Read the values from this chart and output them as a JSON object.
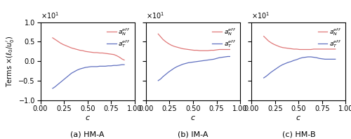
{
  "subplot_titles": [
    "(a) HM-A",
    "(b) IM-A",
    "(c) HM-B"
  ],
  "ylabel": "Terms $\\times (\\ell_0/u_0^{\\prime})$",
  "xlabel": "$c$",
  "xlim": [
    0.0,
    1.0
  ],
  "ylim": [
    -1.0,
    1.0
  ],
  "yticks": [
    -1.0,
    -0.5,
    0.0,
    0.5,
    1.0
  ],
  "xticks": [
    0.0,
    0.25,
    0.5,
    0.75,
    1.0
  ],
  "multiplier_label": "$\\times 10^1$",
  "red_color": "#E07878",
  "blue_color": "#6070C0",
  "legend_label_N": "$a_N^{eff}$",
  "legend_label_T": "$a_T^{eff}$",
  "hma_red_x": [
    0.13,
    0.155,
    0.18,
    0.21,
    0.24,
    0.27,
    0.3,
    0.33,
    0.36,
    0.39,
    0.42,
    0.45,
    0.48,
    0.51,
    0.54,
    0.57,
    0.6,
    0.63,
    0.66,
    0.69,
    0.72,
    0.75,
    0.78,
    0.81,
    0.84,
    0.87,
    0.89
  ],
  "hma_red_y": [
    0.6,
    0.56,
    0.52,
    0.47,
    0.43,
    0.4,
    0.37,
    0.34,
    0.32,
    0.3,
    0.28,
    0.27,
    0.25,
    0.24,
    0.23,
    0.22,
    0.22,
    0.21,
    0.21,
    0.2,
    0.19,
    0.18,
    0.17,
    0.14,
    0.1,
    0.05,
    0.03
  ],
  "hma_blue_x": [
    0.13,
    0.155,
    0.18,
    0.21,
    0.24,
    0.27,
    0.3,
    0.33,
    0.36,
    0.39,
    0.42,
    0.45,
    0.48,
    0.51,
    0.54,
    0.57,
    0.6,
    0.63,
    0.66,
    0.69,
    0.72,
    0.75,
    0.78,
    0.81,
    0.84,
    0.87,
    0.89
  ],
  "hma_blue_y": [
    -0.7,
    -0.66,
    -0.61,
    -0.55,
    -0.49,
    -0.43,
    -0.37,
    -0.31,
    -0.27,
    -0.23,
    -0.2,
    -0.18,
    -0.16,
    -0.15,
    -0.14,
    -0.14,
    -0.14,
    -0.13,
    -0.13,
    -0.13,
    -0.12,
    -0.12,
    -0.11,
    -0.11,
    -0.1,
    -0.09,
    -0.09
  ],
  "ima_red_x": [
    0.13,
    0.155,
    0.18,
    0.21,
    0.24,
    0.27,
    0.3,
    0.33,
    0.36,
    0.39,
    0.42,
    0.45,
    0.48,
    0.51,
    0.54,
    0.57,
    0.6,
    0.63,
    0.66,
    0.69,
    0.72,
    0.75,
    0.78,
    0.81,
    0.84,
    0.87,
    0.89
  ],
  "ima_red_y": [
    0.7,
    0.63,
    0.56,
    0.5,
    0.45,
    0.41,
    0.38,
    0.36,
    0.34,
    0.32,
    0.31,
    0.3,
    0.29,
    0.28,
    0.28,
    0.27,
    0.27,
    0.27,
    0.27,
    0.28,
    0.28,
    0.29,
    0.3,
    0.3,
    0.3,
    0.3,
    0.3
  ],
  "ima_blue_x": [
    0.13,
    0.155,
    0.18,
    0.21,
    0.24,
    0.27,
    0.3,
    0.33,
    0.36,
    0.39,
    0.42,
    0.45,
    0.48,
    0.51,
    0.54,
    0.57,
    0.6,
    0.63,
    0.66,
    0.69,
    0.72,
    0.75,
    0.78,
    0.81,
    0.84,
    0.87,
    0.89
  ],
  "ima_blue_y": [
    -0.5,
    -0.46,
    -0.4,
    -0.34,
    -0.28,
    -0.23,
    -0.18,
    -0.14,
    -0.11,
    -0.08,
    -0.06,
    -0.04,
    -0.03,
    -0.02,
    -0.01,
    0.0,
    0.01,
    0.02,
    0.03,
    0.04,
    0.05,
    0.07,
    0.09,
    0.1,
    0.11,
    0.12,
    0.12
  ],
  "hmb_red_x": [
    0.13,
    0.155,
    0.18,
    0.21,
    0.24,
    0.27,
    0.3,
    0.33,
    0.36,
    0.39,
    0.42,
    0.45,
    0.48,
    0.51,
    0.54,
    0.57,
    0.6,
    0.63,
    0.66,
    0.69,
    0.72,
    0.75,
    0.78,
    0.81,
    0.84,
    0.87,
    0.89
  ],
  "hmb_red_y": [
    0.64,
    0.58,
    0.52,
    0.47,
    0.43,
    0.4,
    0.37,
    0.35,
    0.34,
    0.33,
    0.32,
    0.31,
    0.31,
    0.3,
    0.3,
    0.3,
    0.3,
    0.3,
    0.31,
    0.31,
    0.31,
    0.31,
    0.31,
    0.31,
    0.31,
    0.31,
    0.31
  ],
  "hmb_blue_x": [
    0.13,
    0.155,
    0.18,
    0.21,
    0.24,
    0.27,
    0.3,
    0.33,
    0.36,
    0.39,
    0.42,
    0.45,
    0.48,
    0.51,
    0.54,
    0.57,
    0.6,
    0.63,
    0.66,
    0.69,
    0.72,
    0.75,
    0.78,
    0.81,
    0.84,
    0.87,
    0.89
  ],
  "hmb_blue_y": [
    -0.43,
    -0.39,
    -0.34,
    -0.28,
    -0.23,
    -0.18,
    -0.13,
    -0.09,
    -0.06,
    -0.03,
    -0.01,
    0.02,
    0.04,
    0.07,
    0.09,
    0.1,
    0.11,
    0.11,
    0.1,
    0.09,
    0.07,
    0.06,
    0.05,
    0.05,
    0.05,
    0.05,
    0.05
  ],
  "figsize": [
    5.0,
    1.98
  ],
  "dpi": 100
}
